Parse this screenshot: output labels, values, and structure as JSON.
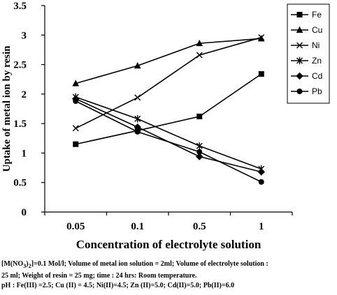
{
  "chart_data": {
    "type": "line",
    "xlabel": "Concentration of electrolyte solution",
    "ylabel": "Uptake of metal ion by resin",
    "categories": [
      "0.05",
      "0.1",
      "0.5",
      "1"
    ],
    "ylim": [
      0,
      3.5
    ],
    "yticks": [
      "0",
      "0.5",
      "1",
      "1.5",
      "2",
      "2.5",
      "3",
      "3.5"
    ],
    "legend_position": "top-right",
    "series": [
      {
        "name": "Fe",
        "marker": "square",
        "values": [
          1.15,
          1.38,
          1.62,
          2.34
        ]
      },
      {
        "name": "Cu",
        "marker": "triangle",
        "values": [
          2.18,
          2.48,
          2.86,
          2.94
        ]
      },
      {
        "name": "Ni",
        "marker": "x",
        "values": [
          1.42,
          1.94,
          2.66,
          2.96
        ]
      },
      {
        "name": "Zn",
        "marker": "star",
        "values": [
          1.95,
          1.58,
          1.12,
          0.73
        ]
      },
      {
        "name": "Cd",
        "marker": "diamond",
        "values": [
          1.92,
          1.44,
          0.94,
          0.68
        ]
      },
      {
        "name": "Pb",
        "marker": "circle",
        "values": [
          1.88,
          1.36,
          1.02,
          0.51
        ]
      }
    ]
  },
  "caption": {
    "line1_pre": "[M(NO",
    "line1_sub1": "3",
    "line1_mid": ")",
    "line1_sub2": "2",
    "line1_post": "]=0.1 Mol/l; Volume of metal ion solution = 2ml; Volume of electrolyte solution :",
    "line2": "25 ml; Weight of resin = 25 mg;  time : 24 hrs: Room temperature.",
    "line3": "pH : Fe(III) =2.5;  Cu (II) = 4.5;  Ni(II)=4.5;  Zn (II)=5.0;  Cd(II)=5.0;  Pb(II)=6.0"
  }
}
